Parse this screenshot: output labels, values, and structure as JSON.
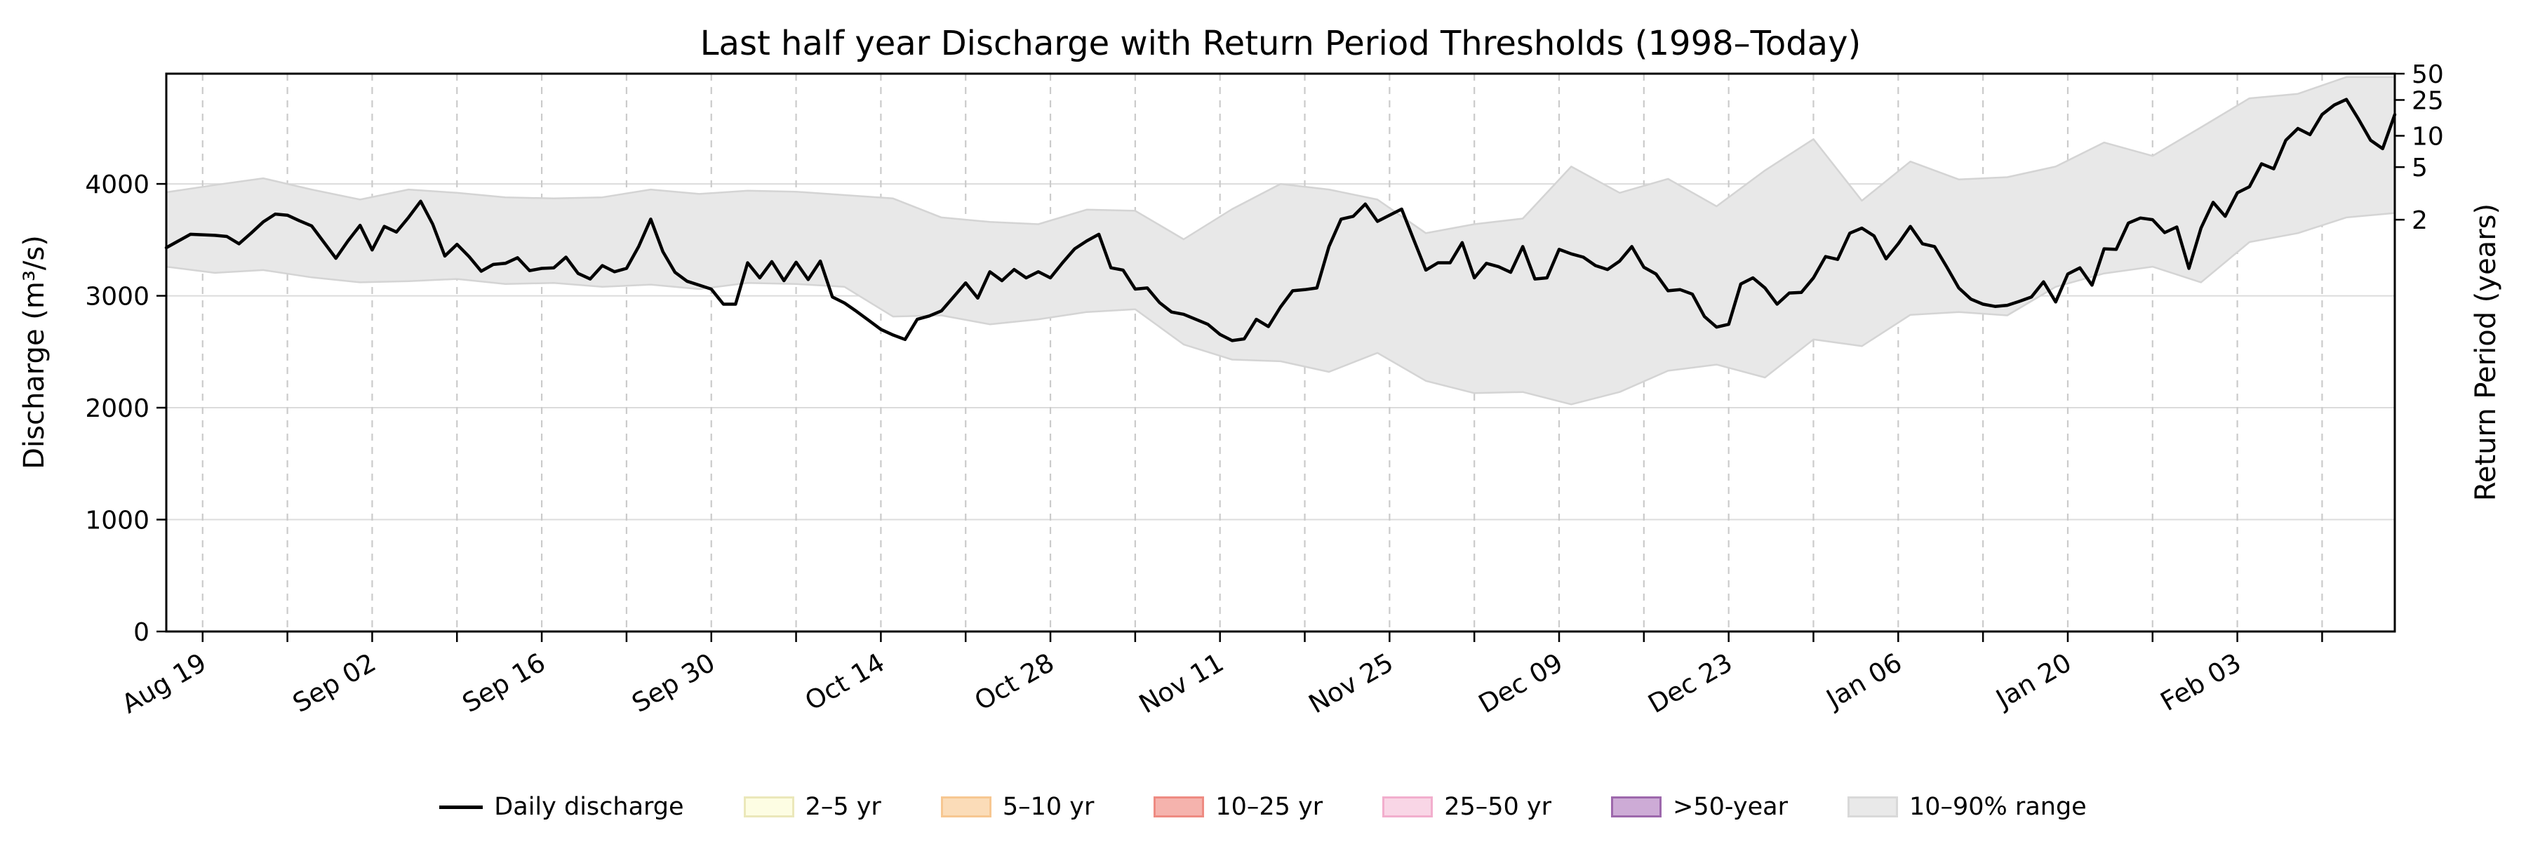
{
  "figure": {
    "title": "Last half year Discharge with Return Period Thresholds (1998–Today)",
    "left_axis": {
      "label": "Discharge (m³/s)",
      "tick_values": [
        0,
        1000,
        2000,
        3000,
        4000
      ]
    },
    "right_axis": {
      "label": "Return Period (years)",
      "ticks": [
        {
          "label": "50",
          "value": 4985
        },
        {
          "label": "25",
          "value": 4750
        },
        {
          "label": "10",
          "value": 4430
        },
        {
          "label": "5",
          "value": 4150
        },
        {
          "label": "2",
          "value": 3680
        }
      ]
    },
    "x_axis": {
      "tick_labels": [
        "Aug 19",
        "Sep 02",
        "Sep 16",
        "Sep 30",
        "Oct 14",
        "Oct 28",
        "Nov 11",
        "Nov 25",
        "Dec 09",
        "Dec 23",
        "Jan 06",
        "Jan 20",
        "Feb 03"
      ],
      "tick_label_days": [
        3,
        17,
        31,
        45,
        59,
        73,
        87,
        101,
        115,
        129,
        143,
        157,
        171
      ],
      "minor_tick_days": [
        3,
        10,
        17,
        24,
        31,
        38,
        45,
        52,
        59,
        66,
        73,
        80,
        87,
        94,
        101,
        108,
        115,
        122,
        129,
        136,
        143,
        150,
        157,
        164,
        171,
        178
      ],
      "rotation_deg": 30
    },
    "colors": {
      "line": "#000000",
      "band_fill": "#e8e8e8",
      "band_edge": "#d4d4d4",
      "hgrid": "#dcdcdc",
      "vgrid": "#cbcbcb",
      "spine": "#000000"
    }
  },
  "legend": {
    "items": [
      {
        "name": "daily-discharge",
        "label": "Daily discharge",
        "type": "line",
        "fill": "#000000",
        "edge": "#000000"
      },
      {
        "name": "2-5-yr",
        "label": "2–5 yr",
        "type": "patch",
        "fill": "#fdfde3",
        "edge": "#ebe8ba"
      },
      {
        "name": "5-10-yr",
        "label": "5–10 yr",
        "type": "patch",
        "fill": "#fbdcb8",
        "edge": "#f7c791"
      },
      {
        "name": "10-25-yr",
        "label": "10–25 yr",
        "type": "patch",
        "fill": "#f5b3ad",
        "edge": "#ee8b82"
      },
      {
        "name": "25-50-yr",
        "label": "25–50 yr",
        "type": "patch",
        "fill": "#f9d6e6",
        "edge": "#f2aecd"
      },
      {
        "name": "gt-50-year",
        "label": ">50-year",
        "type": "patch",
        "fill": "#cdabd6",
        "edge": "#9d68ac"
      },
      {
        "name": "10-90-range",
        "label": "10–90% range",
        "type": "patch",
        "fill": "#e9e9e9",
        "edge": "#d9d9d9"
      }
    ]
  },
  "chart_data": {
    "type": "line",
    "title": "Last half year Discharge with Return Period Thresholds (1998–Today)",
    "xlabel": "",
    "ylabel": "Discharge (m³/s)",
    "ylabel_right": "Return Period (years)",
    "x_start_date": "Aug 16",
    "x_end_date": "Feb 16",
    "days_total": 184,
    "ylim": [
      0,
      4985
    ],
    "grid": "horizontal solid at 1000-4000, vertical dashed weekly",
    "legend_position": "bottom center, outside axes",
    "return_period_thresholds_m3s": {
      "2_yr": 3680,
      "5_yr": 4150,
      "10_yr": 4430,
      "25_yr": 4750,
      "50_yr": 4985
    },
    "series": [
      {
        "name": "Daily discharge",
        "color": "#000000",
        "x_step_days": 1,
        "values": [
          3430,
          3490,
          3550,
          3545,
          3540,
          3530,
          3465,
          3560,
          3660,
          3730,
          3720,
          3670,
          3625,
          3480,
          3335,
          3490,
          3630,
          3410,
          3620,
          3570,
          3700,
          3845,
          3640,
          3355,
          3460,
          3350,
          3220,
          3280,
          3290,
          3340,
          3225,
          3245,
          3250,
          3345,
          3200,
          3150,
          3270,
          3215,
          3245,
          3440,
          3685,
          3395,
          3210,
          3130,
          3095,
          3060,
          2925,
          2925,
          3295,
          3160,
          3305,
          3135,
          3300,
          3145,
          3310,
          2990,
          2935,
          2860,
          2780,
          2700,
          2650,
          2610,
          2790,
          2820,
          2865,
          2990,
          3115,
          2980,
          3215,
          3135,
          3235,
          3160,
          3215,
          3160,
          3295,
          3420,
          3490,
          3550,
          3250,
          3230,
          3060,
          3070,
          2940,
          2855,
          2835,
          2790,
          2745,
          2655,
          2600,
          2615,
          2790,
          2725,
          2900,
          3045,
          3055,
          3070,
          3440,
          3685,
          3710,
          3820,
          3665,
          3720,
          3775,
          3500,
          3230,
          3295,
          3295,
          3475,
          3160,
          3290,
          3260,
          3210,
          3440,
          3150,
          3160,
          3415,
          3375,
          3345,
          3270,
          3235,
          3310,
          3440,
          3255,
          3195,
          3045,
          3055,
          3015,
          2815,
          2720,
          2745,
          3105,
          3160,
          3070,
          2925,
          3025,
          3030,
          3160,
          3350,
          3325,
          3560,
          3605,
          3535,
          3330,
          3465,
          3620,
          3465,
          3440,
          3260,
          3070,
          2970,
          2925,
          2905,
          2915,
          2950,
          2990,
          3125,
          2945,
          3195,
          3250,
          3095,
          3420,
          3415,
          3650,
          3695,
          3680,
          3565,
          3615,
          3245,
          3605,
          3835,
          3710,
          3920,
          3975,
          4180,
          4135,
          4390,
          4495,
          4440,
          4620,
          4705,
          4755,
          4580,
          4390,
          4315,
          4620
        ]
      },
      {
        "name": "10–90% range lower",
        "color": "#e8e8e8",
        "x_step_days": 4,
        "values": [
          3260,
          3205,
          3230,
          3165,
          3120,
          3130,
          3150,
          3105,
          3115,
          3080,
          3100,
          3060,
          3115,
          3105,
          3080,
          2815,
          2825,
          2745,
          2790,
          2855,
          2880,
          2565,
          2430,
          2415,
          2320,
          2490,
          2240,
          2130,
          2140,
          2030,
          2140,
          2330,
          2385,
          2270,
          2610,
          2550,
          2830,
          2855,
          2825,
          3080,
          3200,
          3260,
          3120,
          3480,
          3560,
          3700,
          3740
        ]
      },
      {
        "name": "10–90% range upper",
        "color": "#e8e8e8",
        "x_step_days": 4,
        "values": [
          3925,
          3990,
          4050,
          3950,
          3860,
          3950,
          3920,
          3880,
          3870,
          3880,
          3950,
          3910,
          3940,
          3930,
          3900,
          3870,
          3700,
          3660,
          3640,
          3770,
          3760,
          3505,
          3775,
          4000,
          3950,
          3860,
          3560,
          3640,
          3690,
          4155,
          3920,
          4045,
          3800,
          4120,
          4400,
          3850,
          4200,
          4040,
          4060,
          4155,
          4370,
          4250,
          4505,
          4765,
          4805,
          4955,
          4955
        ]
      }
    ]
  }
}
